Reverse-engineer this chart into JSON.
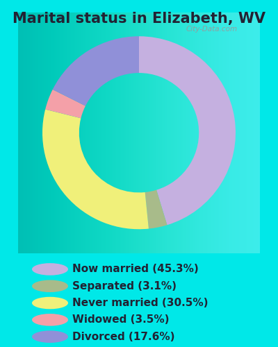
{
  "title": "Marital status in Elizabeth, WV",
  "slices": [
    {
      "label": "Now married (45.3%)",
      "value": 45.3,
      "color": "#c5b0e0"
    },
    {
      "label": "Separated (3.1%)",
      "value": 3.1,
      "color": "#a8bb8a"
    },
    {
      "label": "Never married (30.5%)",
      "value": 30.5,
      "color": "#f0f07a"
    },
    {
      "label": "Widowed (3.5%)",
      "value": 3.5,
      "color": "#f4a0a8"
    },
    {
      "label": "Divorced (17.6%)",
      "value": 17.6,
      "color": "#9090d8"
    }
  ],
  "background_color": "#00e8e8",
  "chart_bg": "#d8f0e0",
  "watermark": "City-Data.com",
  "title_fontsize": 15,
  "legend_fontsize": 11,
  "donut_width": 0.38,
  "start_angle": 90,
  "title_color": "#222233"
}
